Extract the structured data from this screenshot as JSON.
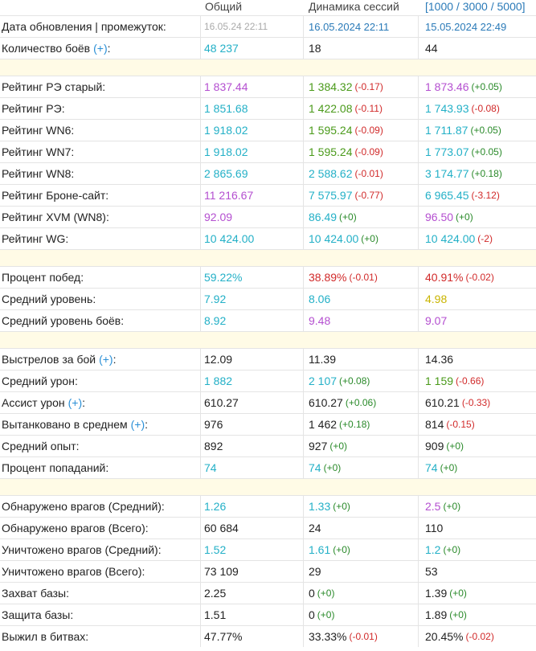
{
  "header": {
    "col1": "Общий",
    "col2": "Динамика сессий",
    "col3": "[1000 / 3000 / 5000]"
  },
  "rows": [
    {
      "type": "data",
      "label": "Дата обновления | промежуток:",
      "plus": false,
      "v1": "16.05.24 22:11",
      "v1c": "grey",
      "v2": "16.05.2024 22:11",
      "v2c": "blue-date",
      "d2": "",
      "d2c": "",
      "v3": "15.05.2024 22:49",
      "v3c": "blue-date",
      "d3": "",
      "d3c": ""
    },
    {
      "type": "data",
      "label": "Количество боёв",
      "plus": true,
      "v1": "48 237",
      "v1c": "v-cyan",
      "v2": "18",
      "v2c": "v-dark",
      "d2": "",
      "d2c": "",
      "v3": "44",
      "v3c": "v-dark",
      "d3": "",
      "d3c": ""
    },
    {
      "type": "spacer"
    },
    {
      "type": "data",
      "label": "Рейтинг РЭ старый:",
      "plus": false,
      "v1": "1 837.44",
      "v1c": "v-purple",
      "v2": "1 384.32",
      "v2c": "v-green",
      "d2": "(-0.17)",
      "d2c": "neg",
      "v3": "1 873.46",
      "v3c": "v-purple",
      "d3": "(+0.05)",
      "d3c": "pos"
    },
    {
      "type": "data",
      "label": "Рейтинг РЭ:",
      "plus": false,
      "v1": "1 851.68",
      "v1c": "v-cyan",
      "v2": "1 422.08",
      "v2c": "v-green",
      "d2": "(-0.11)",
      "d2c": "neg",
      "v3": "1 743.93",
      "v3c": "v-cyan",
      "d3": "(-0.08)",
      "d3c": "neg"
    },
    {
      "type": "data",
      "label": "Рейтинг WN6:",
      "plus": false,
      "v1": "1 918.02",
      "v1c": "v-cyan",
      "v2": "1 595.24",
      "v2c": "v-green",
      "d2": "(-0.09)",
      "d2c": "neg",
      "v3": "1 711.87",
      "v3c": "v-cyan",
      "d3": "(+0.05)",
      "d3c": "pos"
    },
    {
      "type": "data",
      "label": "Рейтинг WN7:",
      "plus": false,
      "v1": "1 918.02",
      "v1c": "v-cyan",
      "v2": "1 595.24",
      "v2c": "v-green",
      "d2": "(-0.09)",
      "d2c": "neg",
      "v3": "1 773.07",
      "v3c": "v-cyan",
      "d3": "(+0.05)",
      "d3c": "pos"
    },
    {
      "type": "data",
      "label": "Рейтинг WN8:",
      "plus": false,
      "v1": "2 865.69",
      "v1c": "v-cyan",
      "v2": "2 588.62",
      "v2c": "v-cyan",
      "d2": "(-0.01)",
      "d2c": "neg",
      "v3": "3 174.77",
      "v3c": "v-cyan",
      "d3": "(+0.18)",
      "d3c": "pos"
    },
    {
      "type": "data",
      "label": "Рейтинг Броне-сайт:",
      "plus": false,
      "v1": "11 216.67",
      "v1c": "v-purple",
      "v2": "7 575.97",
      "v2c": "v-cyan",
      "d2": "(-0.77)",
      "d2c": "neg",
      "v3": "6 965.45",
      "v3c": "v-cyan",
      "d3": "(-3.12)",
      "d3c": "neg"
    },
    {
      "type": "data",
      "label": "Рейтинг XVM (WN8):",
      "plus": false,
      "v1": "92.09",
      "v1c": "v-purple",
      "v2": "86.49",
      "v2c": "v-cyan",
      "d2": "(+0)",
      "d2c": "pos",
      "v3": "96.50",
      "v3c": "v-purple",
      "d3": "(+0)",
      "d3c": "pos"
    },
    {
      "type": "data",
      "label": "Рейтинг WG:",
      "plus": false,
      "v1": "10 424.00",
      "v1c": "v-cyan",
      "v2": "10 424.00",
      "v2c": "v-cyan",
      "d2": "(+0)",
      "d2c": "pos",
      "v3": "10 424.00",
      "v3c": "v-cyan",
      "d3": "(-2)",
      "d3c": "neg"
    },
    {
      "type": "spacer"
    },
    {
      "type": "data",
      "label": "Процент побед:",
      "plus": false,
      "v1": "59.22%",
      "v1c": "v-cyan",
      "v2": "38.89%",
      "v2c": "v-red",
      "d2": "(-0.01)",
      "d2c": "neg",
      "v3": "40.91%",
      "v3c": "v-red",
      "d3": "(-0.02)",
      "d3c": "neg"
    },
    {
      "type": "data",
      "label": "Средний уровень:",
      "plus": false,
      "v1": "7.92",
      "v1c": "v-cyan",
      "v2": "8.06",
      "v2c": "v-cyan",
      "d2": "",
      "d2c": "",
      "v3": "4.98",
      "v3c": "v-yellow",
      "d3": "",
      "d3c": ""
    },
    {
      "type": "data",
      "label": "Средний уровень боёв:",
      "plus": false,
      "v1": "8.92",
      "v1c": "v-cyan",
      "v2": "9.48",
      "v2c": "v-purple",
      "d2": "",
      "d2c": "",
      "v3": "9.07",
      "v3c": "v-purple",
      "d3": "",
      "d3c": ""
    },
    {
      "type": "spacer"
    },
    {
      "type": "data",
      "label": "Выстрелов за бой",
      "plus": true,
      "v1": "12.09",
      "v1c": "v-dark",
      "v2": "11.39",
      "v2c": "v-dark",
      "d2": "",
      "d2c": "",
      "v3": "14.36",
      "v3c": "v-dark",
      "d3": "",
      "d3c": ""
    },
    {
      "type": "data",
      "label": "Средний урон:",
      "plus": false,
      "v1": "1 882",
      "v1c": "v-cyan",
      "v2": "2 107",
      "v2c": "v-cyan",
      "d2": "(+0.08)",
      "d2c": "pos",
      "v3": "1 159",
      "v3c": "v-green",
      "d3": "(-0.66)",
      "d3c": "neg"
    },
    {
      "type": "data",
      "label": "Ассист урон",
      "plus": true,
      "v1": "610.27",
      "v1c": "v-dark",
      "v2": "610.27",
      "v2c": "v-dark",
      "d2": "(+0.06)",
      "d2c": "pos",
      "v3": "610.21",
      "v3c": "v-dark",
      "d3": "(-0.33)",
      "d3c": "neg"
    },
    {
      "type": "data",
      "label": "Вытанковано в среднем",
      "plus": true,
      "v1": "976",
      "v1c": "v-dark",
      "v2": "1 462",
      "v2c": "v-dark",
      "d2": "(+0.18)",
      "d2c": "pos",
      "v3": "814",
      "v3c": "v-dark",
      "d3": "(-0.15)",
      "d3c": "neg"
    },
    {
      "type": "data",
      "label": "Средний опыт:",
      "plus": false,
      "v1": "892",
      "v1c": "v-dark",
      "v2": "927",
      "v2c": "v-dark",
      "d2": "(+0)",
      "d2c": "pos",
      "v3": "909",
      "v3c": "v-dark",
      "d3": "(+0)",
      "d3c": "pos"
    },
    {
      "type": "data",
      "label": "Процент попаданий:",
      "plus": false,
      "v1": "74",
      "v1c": "v-cyan",
      "v2": "74",
      "v2c": "v-cyan",
      "d2": "(+0)",
      "d2c": "pos",
      "v3": "74",
      "v3c": "v-cyan",
      "d3": "(+0)",
      "d3c": "pos"
    },
    {
      "type": "spacer"
    },
    {
      "type": "data",
      "label": "Обнаружено врагов (Средний):",
      "plus": false,
      "v1": "1.26",
      "v1c": "v-cyan",
      "v2": "1.33",
      "v2c": "v-cyan",
      "d2": "(+0)",
      "d2c": "pos",
      "v3": "2.5",
      "v3c": "v-purple",
      "d3": "(+0)",
      "d3c": "pos"
    },
    {
      "type": "data",
      "label": "Обнаружено врагов (Всего):",
      "plus": false,
      "v1": "60 684",
      "v1c": "v-dark",
      "v2": "24",
      "v2c": "v-dark",
      "d2": "",
      "d2c": "",
      "v3": "110",
      "v3c": "v-dark",
      "d3": "",
      "d3c": ""
    },
    {
      "type": "data",
      "label": "Уничтожено врагов (Средний):",
      "plus": false,
      "v1": "1.52",
      "v1c": "v-cyan",
      "v2": "1.61",
      "v2c": "v-cyan",
      "d2": "(+0)",
      "d2c": "pos",
      "v3": "1.2",
      "v3c": "v-cyan",
      "d3": "(+0)",
      "d3c": "pos"
    },
    {
      "type": "data",
      "label": "Уничтожено врагов (Всего):",
      "plus": false,
      "v1": "73 109",
      "v1c": "v-dark",
      "v2": "29",
      "v2c": "v-dark",
      "d2": "",
      "d2c": "",
      "v3": "53",
      "v3c": "v-dark",
      "d3": "",
      "d3c": ""
    },
    {
      "type": "data",
      "label": "Захват базы:",
      "plus": false,
      "v1": "2.25",
      "v1c": "v-dark",
      "v2": "0",
      "v2c": "v-dark",
      "d2": "(+0)",
      "d2c": "pos",
      "v3": "1.39",
      "v3c": "v-dark",
      "d3": "(+0)",
      "d3c": "pos"
    },
    {
      "type": "data",
      "label": "Защита базы:",
      "plus": false,
      "v1": "1.51",
      "v1c": "v-dark",
      "v2": "0",
      "v2c": "v-dark",
      "d2": "(+0)",
      "d2c": "pos",
      "v3": "1.89",
      "v3c": "v-dark",
      "d3": "(+0)",
      "d3c": "pos"
    },
    {
      "type": "data",
      "label": "Выжил в битвах:",
      "plus": false,
      "v1": "47.77%",
      "v1c": "v-dark",
      "v2": "33.33%",
      "v2c": "v-dark",
      "d2": "(-0.01)",
      "d2c": "neg",
      "v3": "20.45%",
      "v3c": "v-dark",
      "d3": "(-0.02)",
      "d3c": "neg"
    }
  ],
  "plus_text": "(+)",
  "plus_suffix": ":"
}
